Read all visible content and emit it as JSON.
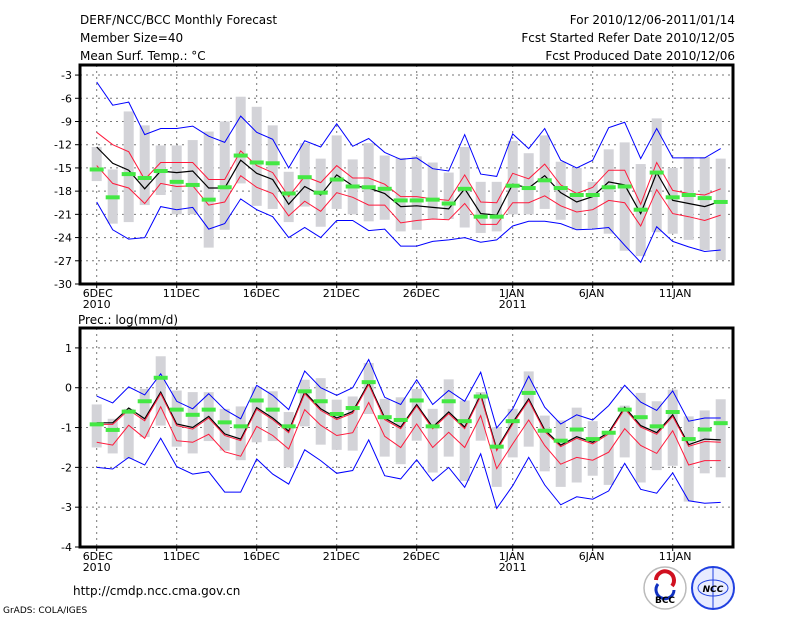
{
  "header": {
    "title": "DERF/NCC/BCC Monthly Forecast",
    "member_size": "Member Size=40",
    "variable": "Mean Surf. Temp.: °C",
    "period": "For 2010/12/06-2011/01/14",
    "started": "Fcst Started Refer Date 2010/12/05",
    "produced": "Fcst Produced Date 2010/12/06"
  },
  "footer": {
    "url": "http://cmdp.ncc.cma.gov.cn",
    "credit": "GrADS: COLA/IGES",
    "logo_bcc": "BCC",
    "logo_ncc": "NCC"
  },
  "colors": {
    "mean": "#000000",
    "spread": "#ff1a3c",
    "extreme": "#0000ff",
    "obs": "#44e844",
    "range": "#d3d3d8"
  },
  "chart_data": [
    {
      "type": "line",
      "title": "Mean Surf. Temp.: °C",
      "ylabel": "°C",
      "ylim": [
        -30,
        -1.7
      ],
      "yticks": [
        -3,
        -6,
        -9,
        -12,
        -15,
        -18,
        -21,
        -24,
        -27,
        -30
      ],
      "ytick_labels": [
        "-3",
        "-6",
        "-9",
        "-12",
        "-15",
        "-18",
        "-21",
        "-24",
        "-27",
        "-30"
      ],
      "x_days": 40,
      "xticks": [
        {
          "day": 0,
          "label": "6DEC",
          "sub": "2010"
        },
        {
          "day": 5,
          "label": "11DEC"
        },
        {
          "day": 10,
          "label": "16DEC"
        },
        {
          "day": 15,
          "label": "21DEC"
        },
        {
          "day": 20,
          "label": "26DEC"
        },
        {
          "day": 26,
          "label": "1JAN",
          "sub": "2011"
        },
        {
          "day": 31,
          "label": "6JAN"
        },
        {
          "day": 36,
          "label": "11JAN"
        }
      ],
      "grid": true,
      "series": [
        {
          "name": "ensemble mean",
          "values": [
            -12.3,
            -14.4,
            -15.3,
            -17.7,
            -15.4,
            -15.6,
            -15.4,
            -17.6,
            -17.6,
            -14.0,
            -15.7,
            -16.5,
            -19.7,
            -17.4,
            -18.5,
            -15.9,
            -17.3,
            -17.6,
            -18.3,
            -20.0,
            -19.9,
            -20.1,
            -20.3,
            -17.7,
            -20.9,
            -21.1,
            -17.1,
            -17.6,
            -16.0,
            -18.2,
            -19.4,
            -18.7,
            -16.8,
            -17.2,
            -20.9,
            -15.6,
            -19.2,
            -19.6,
            -20.0,
            -19.3
          ]
        },
        {
          "name": "upper spread",
          "values": [
            -10.4,
            -12.0,
            -12.9,
            -16.5,
            -14.3,
            -14.3,
            -14.3,
            -16.5,
            -16.5,
            -12.8,
            -14.7,
            -15.6,
            -18.7,
            -16.1,
            -16.9,
            -14.7,
            -16.3,
            -16.3,
            -17.1,
            -18.7,
            -18.7,
            -19.0,
            -19.2,
            -15.9,
            -19.4,
            -19.5,
            -15.7,
            -16.4,
            -14.5,
            -17.2,
            -18.3,
            -17.5,
            -15.3,
            -15.3,
            -19.7,
            -14.3,
            -17.9,
            -18.3,
            -18.5,
            -17.7
          ]
        },
        {
          "name": "lower spread",
          "values": [
            -14.7,
            -17.0,
            -17.6,
            -19.6,
            -17.0,
            -17.4,
            -17.3,
            -19.8,
            -19.4,
            -16.0,
            -17.5,
            -18.3,
            -21.2,
            -19.3,
            -20.6,
            -18.2,
            -18.8,
            -19.8,
            -19.8,
            -22.1,
            -21.8,
            -21.6,
            -21.7,
            -19.6,
            -22.3,
            -22.3,
            -19.5,
            -19.5,
            -18.6,
            -19.9,
            -20.7,
            -20.4,
            -19.2,
            -19.5,
            -22.5,
            -17.8,
            -20.9,
            -21.3,
            -21.8,
            -21.1
          ]
        },
        {
          "name": "upper extreme",
          "values": [
            -3.9,
            -6.9,
            -6.5,
            -10.7,
            -9.9,
            -9.9,
            -9.6,
            -10.9,
            -11.7,
            -8.3,
            -10.4,
            -11.3,
            -15.0,
            -11.5,
            -12.3,
            -9.3,
            -12.2,
            -11.2,
            -13.0,
            -13.9,
            -13.7,
            -15.1,
            -15.4,
            -10.7,
            -15.8,
            -16.1,
            -10.6,
            -12.5,
            -9.9,
            -14.0,
            -15.0,
            -14.0,
            -9.8,
            -9.1,
            -13.8,
            -9.9,
            -13.7,
            -13.7,
            -13.7,
            -12.5
          ]
        },
        {
          "name": "lower extreme",
          "values": [
            -19.4,
            -23.0,
            -24.2,
            -24.0,
            -20.0,
            -20.4,
            -20.1,
            -22.9,
            -22.2,
            -19.0,
            -20.4,
            -21.3,
            -24.0,
            -22.7,
            -24.0,
            -21.8,
            -21.8,
            -23.1,
            -22.9,
            -25.1,
            -25.1,
            -24.5,
            -24.3,
            -24.0,
            -24.6,
            -24.3,
            -22.5,
            -21.9,
            -21.9,
            -22.2,
            -23.0,
            -22.9,
            -22.7,
            -25.0,
            -27.2,
            -22.6,
            -24.5,
            -25.2,
            -25.8,
            -25.6
          ]
        },
        {
          "name": "observed/median marker",
          "values": [
            -15.2,
            -18.8,
            -15.8,
            -16.3,
            -15.4,
            -16.8,
            -17.2,
            -19.1,
            -17.5,
            -13.4,
            -14.3,
            -14.4,
            -18.3,
            -16.2,
            -18.2,
            -16.5,
            -17.4,
            -17.5,
            -17.7,
            -19.2,
            -19.2,
            -19.1,
            -19.6,
            -17.7,
            -21.3,
            -21.3,
            -17.3,
            -17.6,
            -16.6,
            -17.6,
            -18.5,
            -18.5,
            -17.5,
            -17.4,
            -20.4,
            -15.6,
            -18.8,
            -18.5,
            -18.9,
            -19.4
          ]
        }
      ],
      "ranges": [
        [
          -16.7,
          -12.3
        ],
        [
          -22.2,
          -15.2
        ],
        [
          -22.0,
          -7.7
        ],
        [
          -19.8,
          -9.5
        ],
        [
          -18.5,
          -12.1
        ],
        [
          -21.0,
          -12.1
        ],
        [
          -21.0,
          -11.4
        ],
        [
          -25.3,
          -10.3
        ],
        [
          -23.0,
          -9.0
        ],
        [
          -17.0,
          -5.8
        ],
        [
          -19.9,
          -7.1
        ],
        [
          -20.3,
          -9.5
        ],
        [
          -22.0,
          -15.5
        ],
        [
          -20.0,
          -11.8
        ],
        [
          -22.6,
          -13.8
        ],
        [
          -20.3,
          -10.8
        ],
        [
          -21.0,
          -13.9
        ],
        [
          -21.9,
          -11.8
        ],
        [
          -21.7,
          -13.4
        ],
        [
          -23.2,
          -13.7
        ],
        [
          -23.0,
          -13.5
        ],
        [
          -21.6,
          -14.3
        ],
        [
          -21.6,
          -15.6
        ],
        [
          -22.7,
          -12.3
        ],
        [
          -23.4,
          -16.8
        ],
        [
          -23.2,
          -16.8
        ],
        [
          -21.0,
          -11.5
        ],
        [
          -21.0,
          -13.1
        ],
        [
          -20.3,
          -10.8
        ],
        [
          -21.7,
          -14.2
        ],
        [
          -23.0,
          -15.0
        ],
        [
          -22.8,
          -16.8
        ],
        [
          -23.5,
          -12.6
        ],
        [
          -25.7,
          -11.7
        ],
        [
          -26.4,
          -14.5
        ],
        [
          -23.3,
          -8.6
        ],
        [
          -23.5,
          -15.0
        ],
        [
          -24.3,
          -13.6
        ],
        [
          -25.6,
          -13.6
        ],
        [
          -26.9,
          -13.8
        ]
      ]
    },
    {
      "type": "line",
      "title": "Prec.: log(mm/d)",
      "ylabel": "log(mm/d)",
      "ylim": [
        -4,
        1.5
      ],
      "yticks": [
        1,
        0,
        -1,
        -2,
        -3,
        -4
      ],
      "ytick_labels": [
        "1",
        "0",
        "-1",
        "-2",
        "-3",
        "-4"
      ],
      "x_days": 40,
      "xticks": [
        {
          "day": 0,
          "label": "6DEC",
          "sub": "2010"
        },
        {
          "day": 5,
          "label": "11DEC"
        },
        {
          "day": 10,
          "label": "16DEC"
        },
        {
          "day": 15,
          "label": "21DEC"
        },
        {
          "day": 20,
          "label": "26DEC"
        },
        {
          "day": 26,
          "label": "1JAN",
          "sub": "2011"
        },
        {
          "day": 31,
          "label": "6JAN"
        },
        {
          "day": 36,
          "label": "11JAN"
        }
      ],
      "grid": true,
      "series": [
        {
          "name": "ensemble mean",
          "values": [
            -0.88,
            -0.88,
            -0.51,
            -0.78,
            -0.11,
            -0.91,
            -1.0,
            -0.72,
            -1.16,
            -1.29,
            -0.5,
            -0.76,
            -1.09,
            -0.11,
            -0.53,
            -0.76,
            -0.6,
            0.12,
            -0.76,
            -0.99,
            -0.42,
            -0.99,
            -0.61,
            -0.99,
            -0.17,
            -1.54,
            -0.87,
            -0.28,
            -1.06,
            -1.44,
            -1.23,
            -1.37,
            -1.12,
            -0.49,
            -0.95,
            -1.13,
            -0.68,
            -1.43,
            -1.29,
            -1.31
          ]
        },
        {
          "name": "upper spread",
          "values": [
            -0.92,
            -0.92,
            -0.56,
            -0.83,
            -0.15,
            -0.95,
            -1.04,
            -0.76,
            -1.2,
            -1.33,
            -0.54,
            -0.8,
            -1.13,
            -0.15,
            -0.57,
            -0.8,
            -0.64,
            0.08,
            -0.8,
            -1.03,
            -0.46,
            -1.03,
            -0.65,
            -1.03,
            -0.21,
            -1.58,
            -0.91,
            -0.32,
            -1.1,
            -1.48,
            -1.27,
            -1.41,
            -1.16,
            -0.53,
            -0.99,
            -1.17,
            -0.72,
            -1.47,
            -1.35,
            -1.37
          ]
        },
        {
          "name": "lower spread",
          "values": [
            -1.37,
            -1.44,
            -0.94,
            -1.27,
            -0.48,
            -1.33,
            -1.37,
            -1.17,
            -1.61,
            -1.72,
            -0.97,
            -1.2,
            -1.54,
            -0.55,
            -0.94,
            -1.2,
            -1.13,
            -0.37,
            -1.22,
            -1.5,
            -0.91,
            -1.5,
            -1.12,
            -1.5,
            -0.7,
            -2.03,
            -1.41,
            -0.81,
            -1.45,
            -1.92,
            -1.75,
            -1.82,
            -1.62,
            -1.03,
            -1.45,
            -1.65,
            -1.08,
            -1.94,
            -1.83,
            -1.83
          ]
        },
        {
          "name": "upper extreme",
          "values": [
            -0.21,
            -0.38,
            0.02,
            -0.18,
            0.35,
            -0.34,
            -0.53,
            -0.15,
            -0.55,
            -0.78,
            0.06,
            -0.19,
            -0.55,
            0.42,
            0.0,
            -0.19,
            0.0,
            0.71,
            -0.24,
            -0.42,
            0.2,
            -0.42,
            -0.07,
            -0.34,
            0.39,
            -1.01,
            -0.53,
            0.29,
            -0.49,
            -0.91,
            -0.68,
            -0.81,
            -0.45,
            0.06,
            -0.36,
            -0.57,
            -0.08,
            -0.84,
            -0.76,
            -0.76
          ]
        },
        {
          "name": "lower extreme",
          "values": [
            -2.0,
            -2.04,
            -1.75,
            -1.94,
            -1.27,
            -1.98,
            -2.17,
            -2.11,
            -2.62,
            -2.62,
            -1.79,
            -2.17,
            -2.42,
            -1.56,
            -1.83,
            -2.15,
            -2.08,
            -1.31,
            -2.21,
            -2.29,
            -1.81,
            -2.34,
            -2.0,
            -2.5,
            -1.66,
            -3.03,
            -2.46,
            -1.75,
            -2.44,
            -2.94,
            -2.74,
            -2.8,
            -2.59,
            -1.9,
            -2.55,
            -2.65,
            -2.14,
            -2.84,
            -2.9,
            -2.88
          ]
        },
        {
          "name": "observed/median marker",
          "values": [
            -0.92,
            -1.06,
            -0.6,
            -0.34,
            0.25,
            -0.55,
            -0.68,
            -0.55,
            -0.87,
            -0.97,
            -0.32,
            -0.55,
            -0.97,
            -0.09,
            -0.34,
            -0.66,
            -0.51,
            0.14,
            -0.74,
            -0.81,
            -0.32,
            -0.97,
            -0.34,
            -0.84,
            -0.22,
            -1.48,
            -0.84,
            -0.13,
            -1.08,
            -1.33,
            -1.05,
            -1.29,
            -1.13,
            -0.55,
            -0.74,
            -0.97,
            -0.61,
            -1.29,
            -1.05,
            -0.89
          ]
        }
      ],
      "ranges": [
        [
          -1.5,
          -0.42
        ],
        [
          -1.65,
          -0.78
        ],
        [
          -1.79,
          -0.53
        ],
        [
          -1.24,
          -0.03
        ],
        [
          -0.95,
          0.79
        ],
        [
          -1.48,
          -0.07
        ],
        [
          -1.65,
          -0.11
        ],
        [
          -1.34,
          -0.11
        ],
        [
          -1.58,
          -0.53
        ],
        [
          -1.82,
          -0.47
        ],
        [
          -1.37,
          0.02
        ],
        [
          -1.34,
          -0.09
        ],
        [
          -2.0,
          -0.61
        ],
        [
          -0.97,
          0.2
        ],
        [
          -1.43,
          0.24
        ],
        [
          -1.56,
          -0.3
        ],
        [
          -1.58,
          -0.22
        ],
        [
          -0.66,
          0.62
        ],
        [
          -1.73,
          -0.28
        ],
        [
          -1.92,
          -0.24
        ],
        [
          -1.33,
          -0.03
        ],
        [
          -2.13,
          -0.53
        ],
        [
          -1.73,
          0.21
        ],
        [
          -2.34,
          -0.32
        ],
        [
          -1.33,
          -0.11
        ],
        [
          -2.49,
          -0.99
        ],
        [
          -1.75,
          -0.53
        ],
        [
          -1.48,
          0.41
        ],
        [
          -2.1,
          -0.7
        ],
        [
          -2.49,
          -0.82
        ],
        [
          -2.38,
          -0.5
        ],
        [
          -2.21,
          -0.84
        ],
        [
          -2.44,
          -1.12
        ],
        [
          -1.75,
          -0.45
        ],
        [
          -2.38,
          -0.13
        ],
        [
          -2.07,
          -0.34
        ],
        [
          -1.96,
          -0.05
        ],
        [
          -2.86,
          -0.72
        ],
        [
          -2.15,
          -0.57
        ],
        [
          -2.25,
          -0.29
        ]
      ]
    }
  ]
}
